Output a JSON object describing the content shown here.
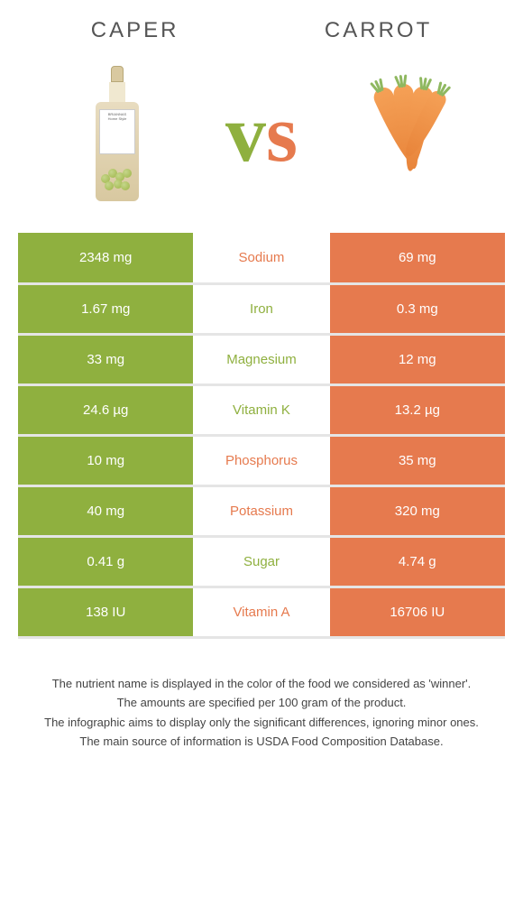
{
  "header": {
    "left_title": "CAPER",
    "right_title": "CARROT"
  },
  "vs": {
    "v_color": "#8fb03f",
    "s_color": "#e67a4e"
  },
  "colors": {
    "left_bg": "#8fb03f",
    "right_bg": "#e67a4e",
    "row_border": "#e5e5e5"
  },
  "nutrients": [
    {
      "name": "Sodium",
      "left": "2348 mg",
      "right": "69 mg",
      "winner": "right"
    },
    {
      "name": "Iron",
      "left": "1.67 mg",
      "right": "0.3 mg",
      "winner": "left"
    },
    {
      "name": "Magnesium",
      "left": "33 mg",
      "right": "12 mg",
      "winner": "left"
    },
    {
      "name": "Vitamin K",
      "left": "24.6 µg",
      "right": "13.2 µg",
      "winner": "left"
    },
    {
      "name": "Phosphorus",
      "left": "10 mg",
      "right": "35 mg",
      "winner": "right"
    },
    {
      "name": "Potassium",
      "left": "40 mg",
      "right": "320 mg",
      "winner": "right"
    },
    {
      "name": "Sugar",
      "left": "0.41 g",
      "right": "4.74 g",
      "winner": "left"
    },
    {
      "name": "Vitamin A",
      "left": "138 IU",
      "right": "16706 IU",
      "winner": "right"
    }
  ],
  "footer": {
    "line1": "The nutrient name is displayed in the color of the food we considered as 'winner'.",
    "line2": "The amounts are specified per 100 gram of the product.",
    "line3": "The infographic aims to display only the significant differences, ignoring minor ones.",
    "line4": "The main source of information is USDA Food Composition Database."
  }
}
